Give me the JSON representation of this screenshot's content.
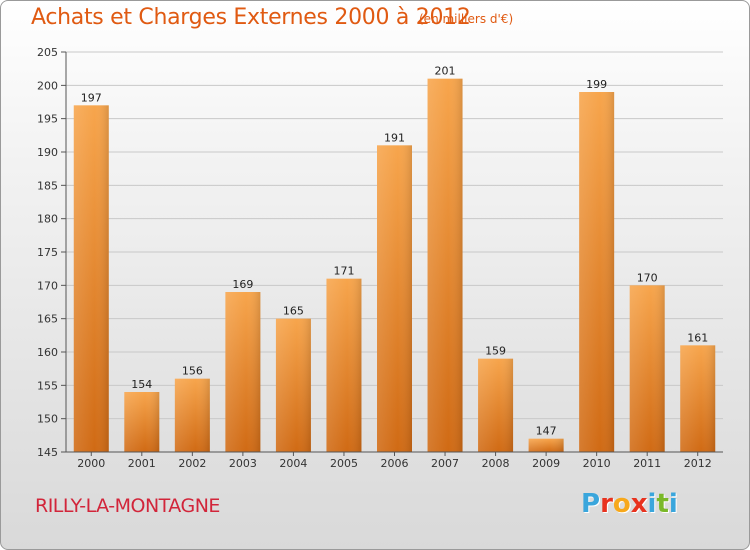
{
  "header": {
    "title": "Achats et Charges Externes 2000 à 2012",
    "subtitle": "(en milliers d'€)"
  },
  "commune": "RILLY-LA-MONTAGNE",
  "logo": {
    "text": "Proxiti",
    "colors": [
      "#3aa6dc",
      "#e8321e",
      "#f7a81b",
      "#e8321e",
      "#3aa6dc",
      "#7ab828",
      "#3aa6dc"
    ]
  },
  "chart_data": {
    "type": "bar",
    "categories": [
      "2000",
      "2001",
      "2002",
      "2003",
      "2004",
      "2005",
      "2006",
      "2007",
      "2008",
      "2009",
      "2010",
      "2011",
      "2012"
    ],
    "values": [
      197,
      154,
      156,
      169,
      165,
      171,
      191,
      201,
      159,
      147,
      199,
      170,
      161
    ],
    "ylim": [
      145,
      205
    ],
    "yticks": [
      145,
      150,
      155,
      160,
      165,
      170,
      175,
      180,
      185,
      190,
      195,
      200,
      205
    ],
    "grid": true,
    "bar_color_top": "#f7a54c",
    "bar_color_bottom": "#d06a14"
  }
}
